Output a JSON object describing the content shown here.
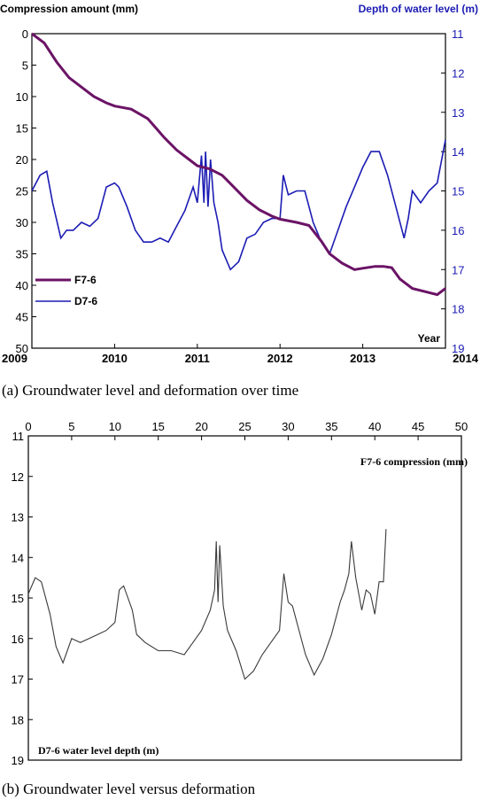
{
  "chart_data": [
    {
      "type": "line",
      "caption": "(a)  Groundwater level and deformation over time",
      "ylabel_left": "Compression amount (mm)",
      "ylabel_right": "Depth of water level (m)",
      "xlabel": "Year",
      "xlim": [
        2009,
        2014
      ],
      "ylim_left": [
        0,
        50
      ],
      "ylim_right": [
        11,
        19
      ],
      "x_ticks": [
        "2009",
        "2010",
        "2011",
        "2012",
        "2013",
        "2014"
      ],
      "y_left_ticks": [
        "0",
        "5",
        "10",
        "15",
        "20",
        "25",
        "30",
        "35",
        "40",
        "45",
        "50"
      ],
      "y_right_ticks": [
        "11",
        "12",
        "13",
        "14",
        "15",
        "16",
        "17",
        "18",
        "19"
      ],
      "series": [
        {
          "name": "F7-6",
          "axis": "left",
          "color": "#6b1366",
          "x": [
            2009.0,
            2009.15,
            2009.3,
            2009.45,
            2009.6,
            2009.75,
            2009.9,
            2010.0,
            2010.2,
            2010.4,
            2010.5,
            2010.6,
            2010.75,
            2010.9,
            2011.0,
            2011.15,
            2011.3,
            2011.45,
            2011.6,
            2011.75,
            2011.9,
            2012.0,
            2012.2,
            2012.35,
            2012.5,
            2012.6,
            2012.75,
            2012.9,
            2013.0,
            2013.15,
            2013.25,
            2013.35,
            2013.45,
            2013.6,
            2013.75,
            2013.9,
            2014.0
          ],
          "y": [
            0,
            1.5,
            4.5,
            7,
            8.5,
            10,
            11,
            11.5,
            12,
            13.5,
            15,
            16.5,
            18.5,
            20,
            21,
            21.5,
            22.5,
            24.5,
            26.5,
            28,
            29,
            29.5,
            30,
            30.5,
            33,
            35,
            36.5,
            37.5,
            37.3,
            37,
            37,
            37.2,
            39,
            40.5,
            41,
            41.5,
            40.5
          ]
        },
        {
          "name": "D7-6",
          "axis": "right",
          "color": "#1c1cb4",
          "x": [
            2009.0,
            2009.1,
            2009.18,
            2009.25,
            2009.35,
            2009.42,
            2009.5,
            2009.6,
            2009.7,
            2009.8,
            2009.9,
            2010.0,
            2010.05,
            2010.15,
            2010.25,
            2010.35,
            2010.45,
            2010.55,
            2010.65,
            2010.75,
            2010.85,
            2010.95,
            2011.0,
            2011.05,
            2011.08,
            2011.1,
            2011.13,
            2011.16,
            2011.2,
            2011.25,
            2011.3,
            2011.4,
            2011.5,
            2011.6,
            2011.7,
            2011.8,
            2011.9,
            2012.0,
            2012.04,
            2012.1,
            2012.2,
            2012.3,
            2012.4,
            2012.5,
            2012.6,
            2012.7,
            2012.8,
            2012.9,
            2013.0,
            2013.1,
            2013.2,
            2013.3,
            2013.4,
            2013.5,
            2013.55,
            2013.6,
            2013.7,
            2013.8,
            2013.9,
            2014.0
          ],
          "y": [
            15.0,
            14.6,
            14.5,
            15.3,
            16.2,
            16.0,
            16.0,
            15.8,
            15.9,
            15.7,
            14.9,
            14.8,
            14.9,
            15.4,
            16.0,
            16.3,
            16.3,
            16.2,
            16.3,
            15.9,
            15.5,
            14.9,
            15.3,
            14.1,
            15.3,
            14.0,
            15.4,
            14.2,
            15.3,
            15.8,
            16.5,
            17.0,
            16.8,
            16.2,
            16.1,
            15.8,
            15.7,
            15.7,
            14.6,
            15.1,
            15.0,
            15.0,
            15.8,
            16.3,
            16.6,
            16.0,
            15.4,
            14.9,
            14.4,
            14.0,
            14.0,
            14.6,
            15.4,
            16.2,
            15.7,
            15.0,
            15.3,
            15.0,
            14.8,
            13.7
          ]
        }
      ]
    },
    {
      "type": "line",
      "caption": "(b)  Groundwater level versus deformation",
      "xlabel": "F7-6 compression (mm)",
      "ylabel": "D7-6 water level depth (m)",
      "xlim": [
        0,
        50
      ],
      "ylim": [
        11,
        19
      ],
      "x_ticks": [
        "0",
        "5",
        "10",
        "15",
        "20",
        "25",
        "30",
        "35",
        "40",
        "45",
        "50"
      ],
      "y_ticks": [
        "11",
        "12",
        "13",
        "14",
        "15",
        "16",
        "17",
        "18",
        "19"
      ],
      "series": [
        {
          "color": "#3a3a3a",
          "x": [
            0,
            0.8,
            1.5,
            2.5,
            3.2,
            4,
            5,
            6,
            7,
            8,
            9,
            10,
            10.5,
            11,
            11.5,
            12,
            12.5,
            13.5,
            15,
            16.5,
            18,
            19,
            20,
            21,
            21.5,
            21.7,
            21.9,
            22.1,
            22.5,
            23,
            24,
            25,
            26,
            27,
            28,
            29,
            29.5,
            30,
            30.5,
            31,
            32,
            33,
            34,
            35,
            36,
            36.5,
            37,
            37.3,
            37.8,
            38.5,
            39,
            39.5,
            40,
            40.5,
            41,
            41.3
          ],
          "y": [
            14.9,
            14.5,
            14.6,
            15.4,
            16.2,
            16.6,
            16.0,
            16.1,
            16.0,
            15.9,
            15.8,
            15.6,
            14.8,
            14.7,
            15.0,
            15.3,
            15.9,
            16.1,
            16.3,
            16.3,
            16.4,
            16.1,
            15.8,
            15.3,
            14.8,
            13.6,
            15.1,
            13.7,
            15.2,
            15.8,
            16.3,
            17.0,
            16.8,
            16.4,
            16.1,
            15.8,
            14.4,
            15.1,
            15.2,
            15.6,
            16.4,
            16.9,
            16.5,
            15.9,
            15.1,
            14.8,
            14.4,
            13.6,
            14.5,
            15.3,
            14.8,
            14.9,
            15.4,
            14.6,
            14.6,
            13.3
          ]
        }
      ]
    }
  ]
}
